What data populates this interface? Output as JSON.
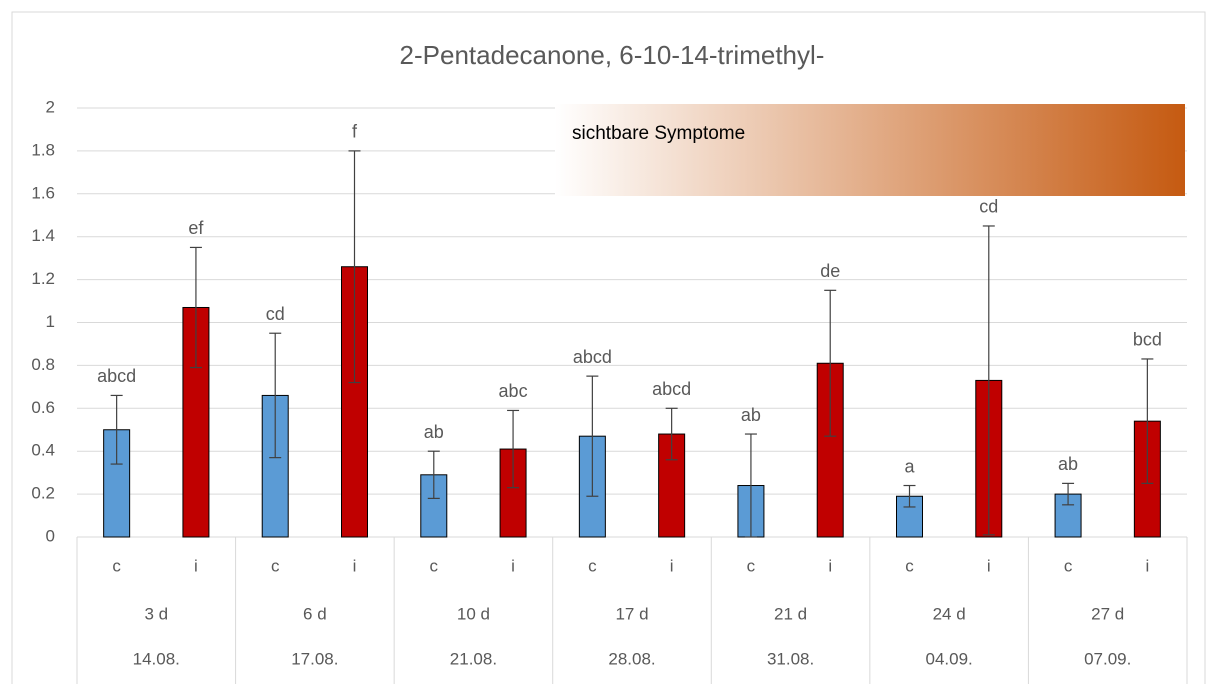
{
  "chart_data": {
    "type": "bar",
    "title": "2-Pentadecanone, 6-10-14-trimethyl-",
    "categories": [
      "c",
      "i",
      "c",
      "i",
      "c",
      "i",
      "c",
      "i",
      "c",
      "i",
      "c",
      "i",
      "c",
      "i"
    ],
    "groups": [
      {
        "label": "3 d",
        "date": "14.08."
      },
      {
        "label": "6 d",
        "date": "17.08."
      },
      {
        "label": "10 d",
        "date": "21.08."
      },
      {
        "label": "17 d",
        "date": "28.08."
      },
      {
        "label": "21 d",
        "date": "31.08."
      },
      {
        "label": "24 d",
        "date": "04.09."
      },
      {
        "label": "27 d",
        "date": "07.09."
      }
    ],
    "values": [
      0.5,
      1.07,
      0.66,
      1.26,
      0.29,
      0.41,
      0.47,
      0.48,
      0.24,
      0.81,
      0.19,
      0.73,
      0.2,
      0.54
    ],
    "errors": [
      0.16,
      0.28,
      0.29,
      0.54,
      0.11,
      0.18,
      0.28,
      0.12,
      0.24,
      0.34,
      0.05,
      0.72,
      0.05,
      0.29
    ],
    "letters": [
      "abcd",
      "ef",
      "cd",
      "f",
      "ab",
      "abc",
      "abcd",
      "abcd",
      "ab",
      "de",
      "a",
      "cd",
      "ab",
      "bcd"
    ],
    "colors": [
      "#5b9bd5",
      "#c00000",
      "#5b9bd5",
      "#c00000",
      "#5b9bd5",
      "#c00000",
      "#5b9bd5",
      "#c00000",
      "#5b9bd5",
      "#c00000",
      "#5b9bd5",
      "#c00000",
      "#5b9bd5",
      "#c00000"
    ],
    "annotation": {
      "text": "sichtbare Symptome",
      "color": "#c55a11"
    },
    "ylim": [
      0,
      2
    ],
    "yticks": [
      0,
      0.2,
      0.4,
      0.6,
      0.8,
      1,
      1.2,
      1.4,
      1.6,
      1.8,
      2
    ],
    "grid": true
  }
}
